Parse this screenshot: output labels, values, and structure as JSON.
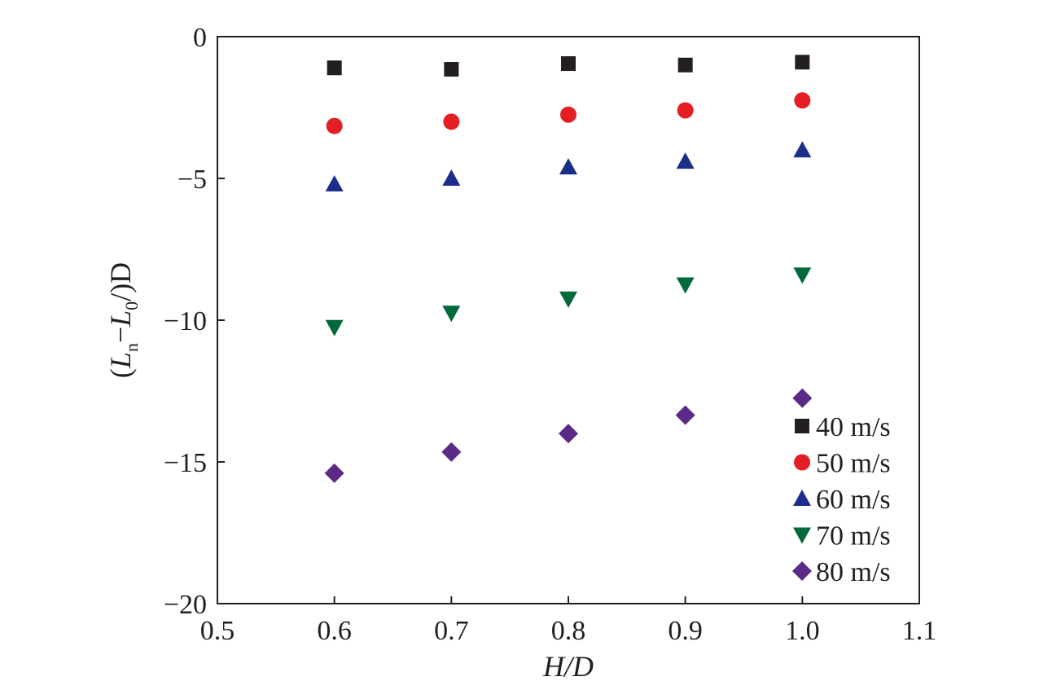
{
  "chart_data": {
    "type": "scatter",
    "xlabel": "H/D",
    "ylabel": {
      "open": "(",
      "l1": "L",
      "sub1": "n",
      "minus": "−",
      "l2": "L",
      "sub2": "0",
      "close": "/)D"
    },
    "xlim": [
      0.5,
      1.1
    ],
    "ylim": [
      -20,
      0
    ],
    "xticks": [
      0.5,
      0.6,
      0.7,
      0.8,
      0.9,
      1.0,
      1.1
    ],
    "xtick_labels": [
      "0.5",
      "0.6",
      "0.7",
      "0.8",
      "0.9",
      "1.0",
      "1.1"
    ],
    "yticks": [
      0,
      -5,
      -10,
      -15,
      -20
    ],
    "ytick_labels": [
      "0",
      "−5",
      "−10",
      "−15",
      "−20"
    ],
    "grid": false,
    "legend_position": "bottom-right",
    "series": [
      {
        "name": "40 m/s",
        "marker": "square",
        "color": "#231f20",
        "x": [
          0.6,
          0.7,
          0.8,
          0.9,
          1.0
        ],
        "y": [
          -1.1,
          -1.15,
          -0.95,
          -1.0,
          -0.9
        ]
      },
      {
        "name": "50 m/s",
        "marker": "circle",
        "color": "#e31e24",
        "x": [
          0.6,
          0.7,
          0.8,
          0.9,
          1.0
        ],
        "y": [
          -3.15,
          -3.0,
          -2.75,
          -2.6,
          -2.25
        ]
      },
      {
        "name": "60 m/s",
        "marker": "triangle-up",
        "color": "#1d2e8a",
        "x": [
          0.6,
          0.7,
          0.8,
          0.9,
          1.0
        ],
        "y": [
          -5.2,
          -5.0,
          -4.6,
          -4.4,
          -4.0
        ]
      },
      {
        "name": "70 m/s",
        "marker": "triangle-down",
        "color": "#006a3b",
        "x": [
          0.6,
          0.7,
          0.8,
          0.9,
          1.0
        ],
        "y": [
          -10.25,
          -9.75,
          -9.25,
          -8.75,
          -8.4
        ]
      },
      {
        "name": "80 m/s",
        "marker": "diamond",
        "color": "#5b2a86",
        "x": [
          0.6,
          0.7,
          0.8,
          0.9,
          1.0
        ],
        "y": [
          -15.4,
          -14.65,
          -14.0,
          -13.35,
          -12.75
        ]
      }
    ]
  }
}
